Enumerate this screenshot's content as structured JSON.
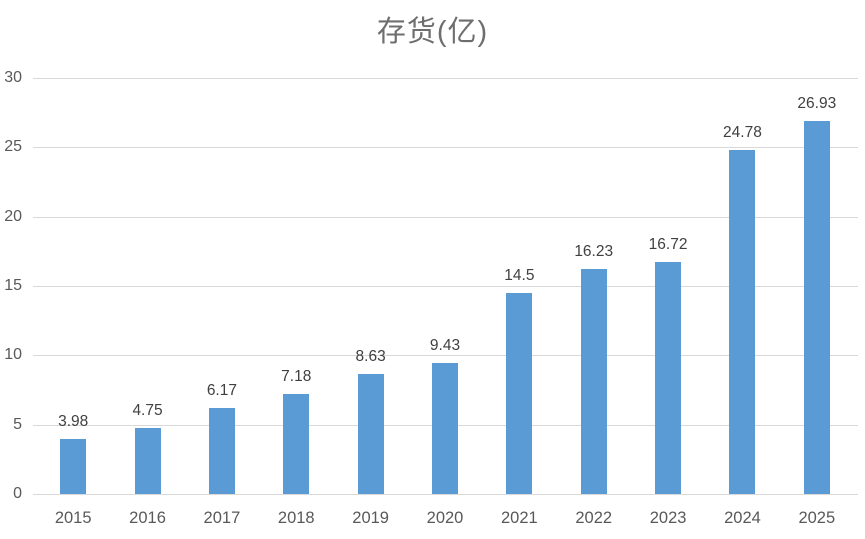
{
  "chart_data": {
    "type": "bar",
    "title": "存货(亿)",
    "categories": [
      "2015",
      "2016",
      "2017",
      "2018",
      "2019",
      "2020",
      "2021",
      "2022",
      "2023",
      "2024",
      "2025"
    ],
    "values": [
      3.98,
      4.75,
      6.17,
      7.18,
      8.63,
      9.43,
      14.5,
      16.23,
      16.72,
      24.78,
      26.93
    ],
    "value_labels": [
      "3.98",
      "4.75",
      "6.17",
      "7.18",
      "8.63",
      "9.43",
      "14.5",
      "16.23",
      "16.72",
      "24.78",
      "26.93"
    ],
    "xlabel": "",
    "ylabel": "",
    "ylim": [
      0,
      30
    ],
    "yticks": [
      0,
      5,
      10,
      15,
      20,
      25,
      30
    ],
    "grid": "horizontal-only",
    "legend": "none",
    "colors": {
      "bar": "#5b9bd5",
      "gridline": "#d9d9d9",
      "axis_line": "#d9d9d9",
      "tick_label": "#595959",
      "value_label": "#404040",
      "title": "#6e6e6e"
    }
  }
}
